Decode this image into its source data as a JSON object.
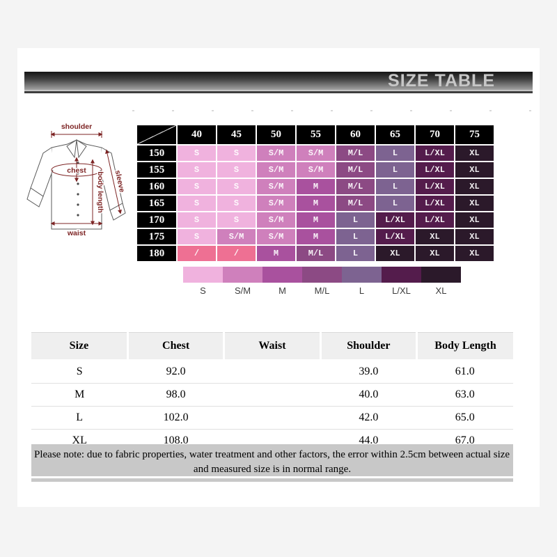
{
  "header": {
    "title": "SIZE TABLE"
  },
  "diagram": {
    "labels": {
      "shoulder": "shoulder",
      "chest": "chest",
      "sleeve": "sleeve",
      "body_length": "body length",
      "waist": "waist"
    }
  },
  "size_matrix": {
    "col_headers": [
      "40",
      "45",
      "50",
      "55",
      "60",
      "65",
      "70",
      "75"
    ],
    "row_headers": [
      "150",
      "155",
      "160",
      "165",
      "170",
      "175",
      "180"
    ],
    "cells": [
      [
        "S",
        "S",
        "S/M",
        "S/M",
        "M/L",
        "L",
        "L/XL",
        "XL"
      ],
      [
        "S",
        "S",
        "S/M",
        "S/M",
        "M/L",
        "L",
        "L/XL",
        "XL"
      ],
      [
        "S",
        "S",
        "S/M",
        "M",
        "M/L",
        "L",
        "L/XL",
        "XL"
      ],
      [
        "S",
        "S",
        "S/M",
        "M",
        "M/L",
        "L",
        "L/XL",
        "XL"
      ],
      [
        "S",
        "S",
        "S/M",
        "M",
        "L",
        "L/XL",
        "L/XL",
        "XL"
      ],
      [
        "S",
        "S/M",
        "S/M",
        "M",
        "L",
        "L/XL",
        "XL",
        "XL"
      ],
      [
        "/",
        "/",
        "M",
        "M/L",
        "L",
        "XL",
        "XL",
        "XL"
      ]
    ],
    "colors": {
      "S": "#f0b2de",
      "S/M": "#cf80bc",
      "M": "#a9519e",
      "M/L": "#8c4a84",
      "L": "#7d6391",
      "L/XL": "#541c4c",
      "XL": "#2b192a",
      "/": "#ee7093"
    },
    "header_bg": "#000000"
  },
  "legend": {
    "items": [
      {
        "label": "S",
        "color": "#f0b2de"
      },
      {
        "label": "S/M",
        "color": "#cf80bc"
      },
      {
        "label": "M",
        "color": "#a9519e"
      },
      {
        "label": "M/L",
        "color": "#8c4a84"
      },
      {
        "label": "L",
        "color": "#7d6391"
      },
      {
        "label": "L/XL",
        "color": "#541c4c"
      },
      {
        "label": "XL",
        "color": "#2b192a"
      }
    ]
  },
  "measure_table": {
    "headers": [
      "Size",
      "Chest",
      "Waist",
      "Shoulder",
      "Body Length"
    ],
    "rows": [
      [
        "S",
        "92.0",
        "",
        "39.0",
        "61.0"
      ],
      [
        "M",
        "98.0",
        "",
        "40.0",
        "63.0"
      ],
      [
        "L",
        "102.0",
        "",
        "42.0",
        "65.0"
      ],
      [
        "XL",
        "108.0",
        "",
        "44.0",
        "67.0"
      ]
    ]
  },
  "note": {
    "line1": "Please note: due to fabric properties, water treatment and other factors, the error within 2.5cm between actual size",
    "line2": "and measured size is in normal range."
  }
}
